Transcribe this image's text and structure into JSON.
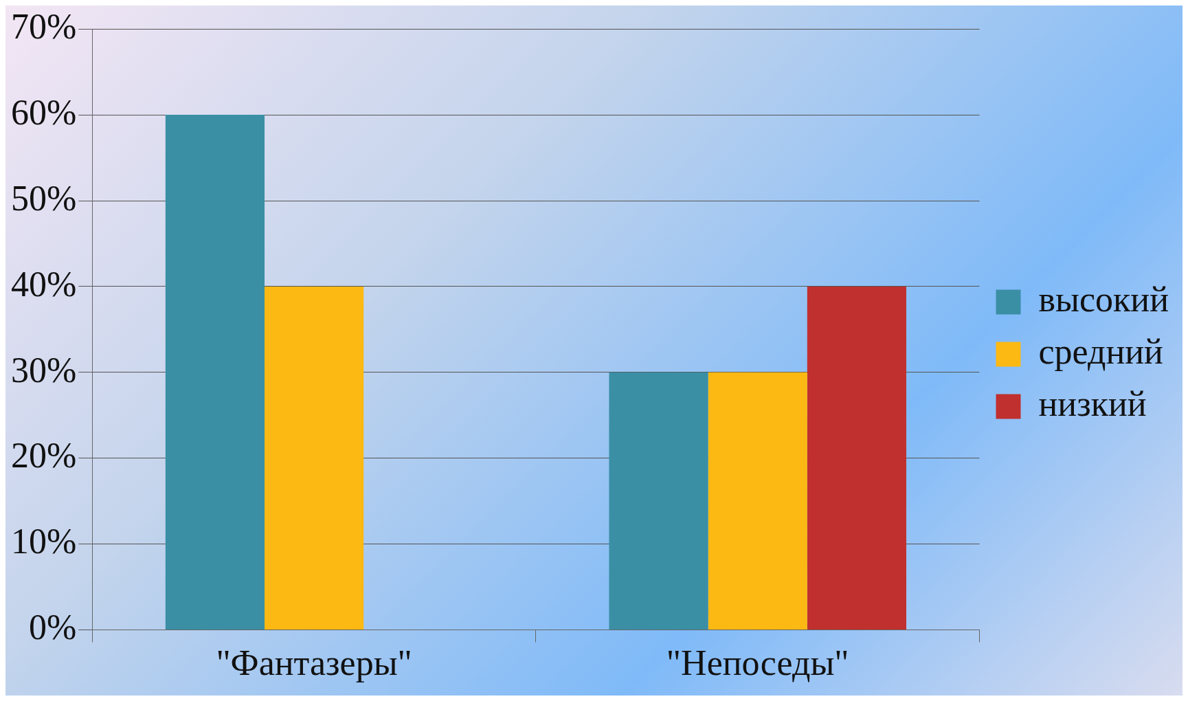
{
  "chart_data": {
    "type": "bar",
    "categories": [
      "\"Фантазеры\"",
      "\"Непоседы\""
    ],
    "series": [
      {
        "name": "высокий",
        "color": "#3a8fa5",
        "values": [
          60,
          30
        ]
      },
      {
        "name": "средний",
        "color": "#fdb913",
        "values": [
          40,
          30
        ]
      },
      {
        "name": "низкий",
        "color": "#c0302e",
        "values": [
          0,
          40
        ]
      }
    ],
    "ylim": [
      0,
      70
    ],
    "yticks": [
      {
        "value": 0,
        "label": "0%"
      },
      {
        "value": 10,
        "label": "10%"
      },
      {
        "value": 20,
        "label": "20%"
      },
      {
        "value": 30,
        "label": "30%"
      },
      {
        "value": 40,
        "label": "40%"
      },
      {
        "value": 50,
        "label": "50%"
      },
      {
        "value": 60,
        "label": "60%"
      },
      {
        "value": 70,
        "label": "70%"
      }
    ],
    "grid": "y",
    "legend": "right"
  }
}
